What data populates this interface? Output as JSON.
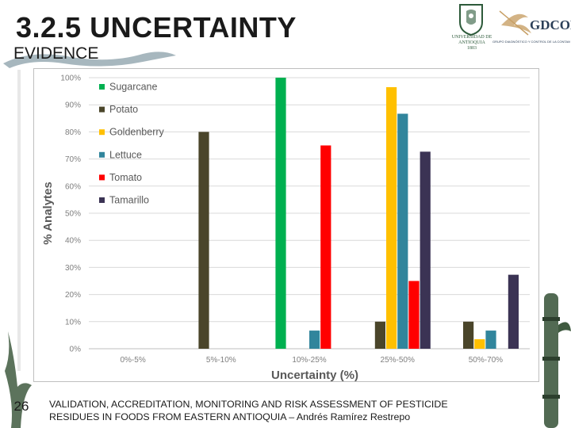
{
  "slide": {
    "title": "3.2.5 UNCERTAINTY",
    "subtitle": "EVIDENCE",
    "page_number": "26",
    "footer_line1": "VALIDATION, ACCREDITATION, MONITORING AND RISK ASSESSMENT OF PESTICIDE",
    "footer_line2": "RESIDUES IN FOODS FROM EASTERN ANTIOQUIA – Andrés Ramírez Restrepo"
  },
  "logos": {
    "university_text": "UNIVERSIDAD DE ANTIOQUIA",
    "university_year": "1803",
    "gdcon_word": "GDCON",
    "gdcon_sub": "GRUPO DIAGNÓSTICO Y CONTROL DE LA CONTAMINACIÓN"
  },
  "colors": {
    "Sugarcane": "#00b050",
    "Potato": "#4a452a",
    "Goldenberry": "#ffc000",
    "Lettuce": "#31859c",
    "Tomato": "#ff0000",
    "Tamarillo": "#3b3354",
    "grid": "#d9d9d9",
    "tick_text": "#7f7f7f"
  },
  "chart_data": {
    "type": "bar",
    "title": "",
    "xlabel": "Uncertainty (%)",
    "ylabel": "% Analytes",
    "ylim": [
      0,
      100
    ],
    "yticks": [
      "0%",
      "10%",
      "20%",
      "30%",
      "40%",
      "50%",
      "60%",
      "70%",
      "80%",
      "90%",
      "100%"
    ],
    "grid": true,
    "legend_position": "top-left",
    "categories": [
      "0%-5%",
      "5%-10%",
      "10%-25%",
      "25%-50%",
      "50%-70%"
    ],
    "series": [
      {
        "name": "Sugarcane",
        "values": [
          0,
          0,
          100,
          0,
          0
        ]
      },
      {
        "name": "Potato",
        "values": [
          0,
          80,
          0,
          10,
          10
        ]
      },
      {
        "name": "Goldenberry",
        "values": [
          0,
          0,
          0,
          96.5,
          3.5
        ]
      },
      {
        "name": "Lettuce",
        "values": [
          0,
          0,
          6.7,
          86.7,
          6.7
        ]
      },
      {
        "name": "Tomato",
        "values": [
          0,
          0,
          75,
          25,
          0
        ]
      },
      {
        "name": "Tamarillo",
        "values": [
          0,
          0,
          0,
          72.7,
          27.3
        ]
      }
    ]
  }
}
